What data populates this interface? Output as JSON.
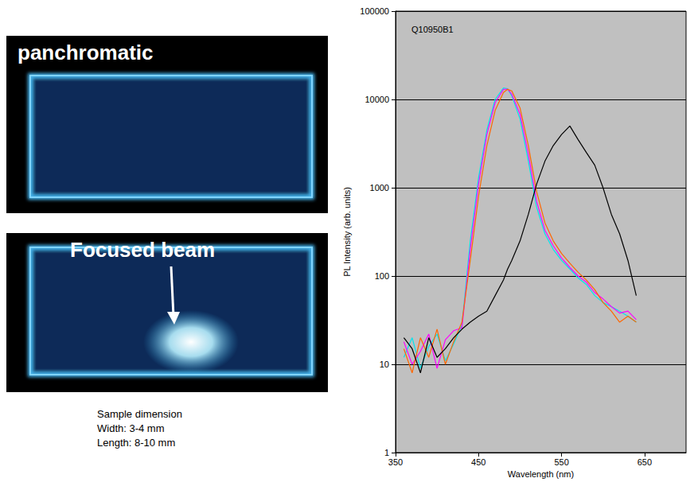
{
  "images": [
    {
      "label": "panchromatic"
    },
    {
      "label": "Focused beam"
    }
  ],
  "caption": [
    "Sample dimension",
    "Width: 3-4 mm",
    "Length: 8-10 mm"
  ],
  "chart_data": {
    "type": "line",
    "annotation": "Q10950B1",
    "xlabel": "Wavelength (nm)",
    "ylabel": "PL Intensity (arb. units)",
    "log": "y",
    "grid": true,
    "xlim": [
      350,
      700
    ],
    "xticks": [
      350,
      450,
      550,
      650
    ],
    "ylim": [
      1,
      100000
    ],
    "yticks": [
      1,
      10,
      100,
      1000,
      10000,
      100000
    ],
    "x": [
      360,
      370,
      380,
      390,
      400,
      410,
      420,
      430,
      440,
      450,
      460,
      470,
      480,
      485,
      490,
      500,
      510,
      520,
      530,
      540,
      550,
      560,
      570,
      580,
      590,
      600,
      610,
      620,
      630,
      640
    ],
    "series": [
      {
        "color": "#00e5ee",
        "values": [
          12,
          20,
          9,
          16,
          22,
          11,
          17,
          28,
          250,
          1300,
          4500,
          10000,
          13500,
          13200,
          11000,
          6000,
          2000,
          600,
          300,
          200,
          150,
          120,
          95,
          80,
          60,
          50,
          45,
          40,
          35,
          30
        ]
      },
      {
        "color": "#ff00ff",
        "values": [
          18,
          10,
          14,
          22,
          9,
          19,
          24,
          26,
          200,
          1100,
          4000,
          9200,
          13000,
          13100,
          11500,
          6800,
          2400,
          700,
          330,
          220,
          160,
          125,
          100,
          85,
          65,
          55,
          45,
          38,
          40,
          32
        ]
      },
      {
        "color": "#ff6600",
        "values": [
          15,
          8,
          20,
          12,
          25,
          10,
          18,
          30,
          150,
          800,
          3000,
          7500,
          12000,
          13000,
          12500,
          8000,
          3000,
          900,
          400,
          250,
          180,
          140,
          110,
          90,
          70,
          50,
          40,
          30,
          35,
          30
        ]
      },
      {
        "color": "#000000",
        "values": [
          20,
          15,
          8,
          20,
          12,
          15,
          20,
          25,
          30,
          35,
          40,
          60,
          90,
          120,
          150,
          250,
          500,
          1100,
          2000,
          3000,
          4000,
          5000,
          3500,
          2500,
          1800,
          1000,
          500,
          300,
          150,
          60
        ]
      }
    ]
  }
}
